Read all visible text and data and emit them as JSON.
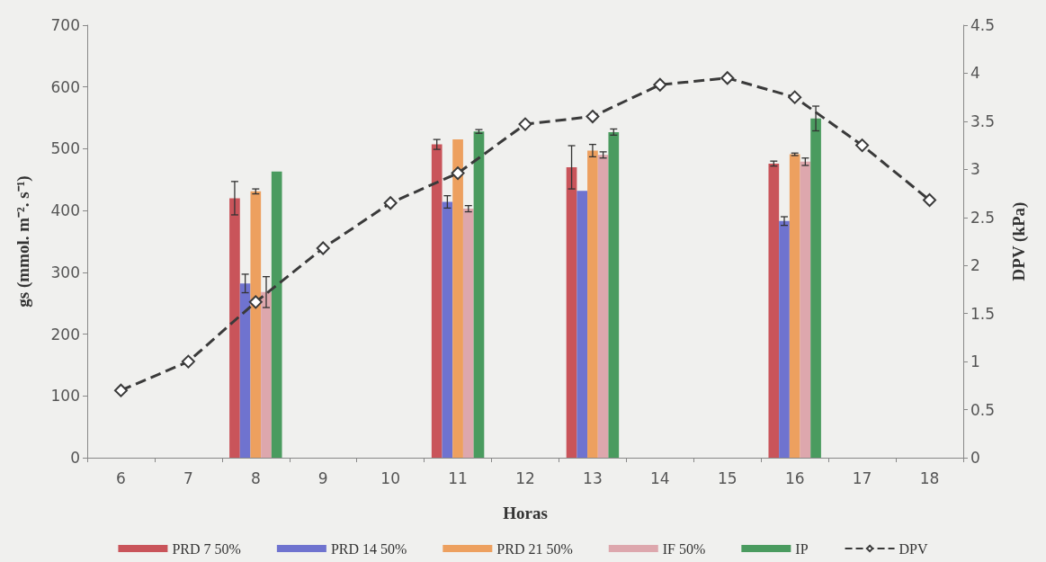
{
  "chart_data": {
    "type": "bar",
    "xlabel": "Horas",
    "ylabel": "gs (mmol. m⁻². s⁻¹)",
    "y2label": "DPV (kPa)",
    "categories": [
      "6",
      "7",
      "8",
      "9",
      "10",
      "11",
      "12",
      "13",
      "14",
      "15",
      "16",
      "17",
      "18"
    ],
    "ylim": [
      0,
      700
    ],
    "yticks": [
      0,
      100,
      200,
      300,
      400,
      500,
      600,
      700
    ],
    "y2lim": [
      0,
      4.5
    ],
    "y2ticks": [
      0,
      0.5,
      1,
      1.5,
      2,
      2.5,
      3,
      3.5,
      4,
      4.5
    ],
    "grid": false,
    "legend": "bottom",
    "series": [
      {
        "name": "PRD 7 50%",
        "color": "#c9545a",
        "values": [
          null,
          null,
          420,
          null,
          null,
          507,
          null,
          470,
          null,
          null,
          476,
          null,
          null
        ],
        "errors": [
          null,
          null,
          27,
          null,
          null,
          8,
          null,
          35,
          null,
          null,
          4,
          null,
          null
        ]
      },
      {
        "name": "PRD 14 50%",
        "color": "#6f73cf",
        "values": [
          null,
          null,
          282,
          null,
          null,
          414,
          null,
          432,
          null,
          null,
          383,
          null,
          null
        ],
        "errors": [
          null,
          null,
          15,
          null,
          null,
          10,
          null,
          null,
          null,
          null,
          7,
          null,
          null
        ]
      },
      {
        "name": "PRD 21 50%",
        "color": "#eda05f",
        "values": [
          null,
          null,
          431,
          null,
          null,
          515,
          null,
          497,
          null,
          null,
          491,
          null,
          null
        ],
        "errors": [
          null,
          null,
          4,
          null,
          null,
          null,
          null,
          10,
          null,
          null,
          2,
          null,
          null
        ]
      },
      {
        "name": "IF 50%",
        "color": "#dda7ad",
        "values": [
          null,
          null,
          268,
          null,
          null,
          403,
          null,
          490,
          null,
          null,
          479,
          null,
          null
        ],
        "errors": [
          null,
          null,
          25,
          null,
          null,
          5,
          null,
          5,
          null,
          null,
          6,
          null,
          null
        ]
      },
      {
        "name": "IP",
        "color": "#4a9b5f",
        "values": [
          null,
          null,
          463,
          null,
          null,
          528,
          null,
          527,
          null,
          null,
          549,
          null,
          null
        ],
        "errors": [
          null,
          null,
          null,
          null,
          null,
          3,
          null,
          5,
          null,
          null,
          20,
          null,
          null
        ]
      },
      {
        "name": "DPV",
        "type": "line",
        "axis": "y2",
        "color": "#3a3a3a",
        "marker": "diamond",
        "line_style": "dashed",
        "values": [
          0.7,
          1.0,
          1.62,
          2.18,
          2.65,
          2.96,
          3.47,
          3.55,
          3.88,
          3.95,
          3.75,
          3.25,
          2.68
        ]
      }
    ]
  }
}
